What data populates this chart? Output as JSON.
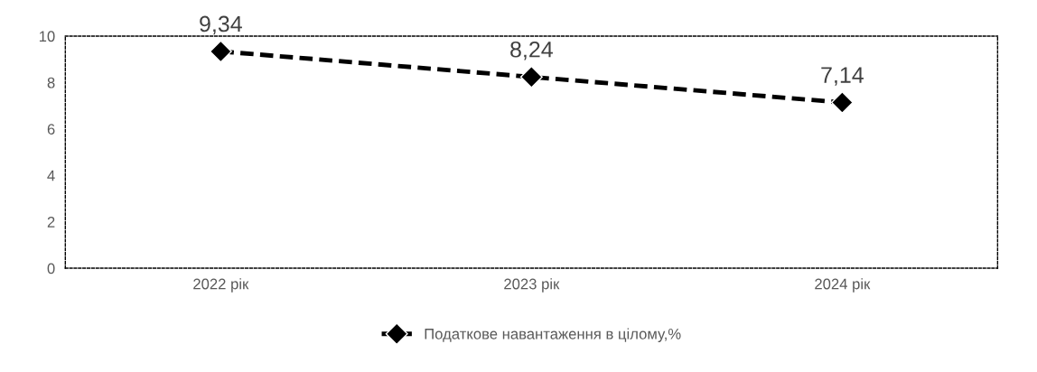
{
  "chart_data": {
    "type": "line",
    "categories": [
      "2022 рік",
      "2023 рік",
      "2024 рік"
    ],
    "series": [
      {
        "name": "Податкове навантаження в цілому,%",
        "color": "#000000",
        "values": [
          9.34,
          8.24,
          7.14
        ],
        "value_labels": [
          "9,34",
          "8,24",
          "7,14"
        ]
      }
    ],
    "ylim": [
      0,
      10
    ],
    "yticks": [
      0,
      2,
      4,
      6,
      8,
      10
    ],
    "grid": false,
    "legend": "bottom",
    "marker": "diamond",
    "line_style": "dashed"
  }
}
